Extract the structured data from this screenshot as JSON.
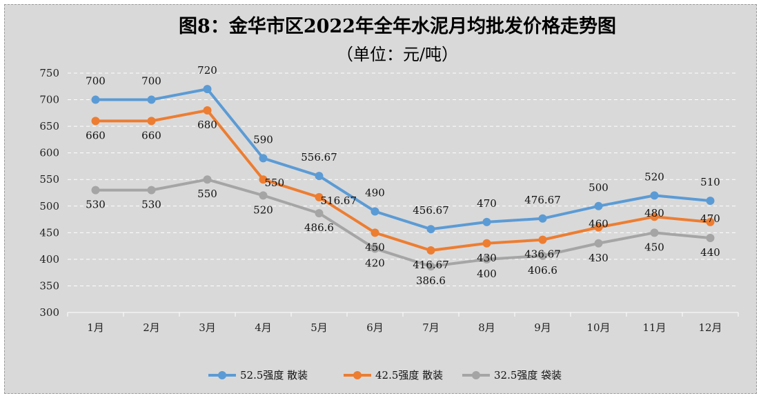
{
  "chart_data": {
    "type": "line",
    "title": "图8：金华市区2022年全年水泥月均批发价格走势图",
    "subtitle": "（单位：元/吨）",
    "categories": [
      "1月",
      "2月",
      "3月",
      "4月",
      "5月",
      "6月",
      "7月",
      "8月",
      "9月",
      "10月",
      "11月",
      "12月"
    ],
    "ylim": [
      300,
      750
    ],
    "yticks": [
      300,
      350,
      400,
      450,
      500,
      550,
      600,
      650,
      700,
      750
    ],
    "grid": true,
    "legend_position": "bottom",
    "series": [
      {
        "name": "52.5强度 散装",
        "color": "#5b9bd5",
        "values": [
          700,
          700,
          720,
          590,
          556.67,
          490,
          456.67,
          470,
          476.67,
          500,
          520,
          510
        ],
        "labels": [
          "700",
          "700",
          "720",
          "590",
          "556.67",
          "490",
          "456.67",
          "470",
          "476.67",
          "500",
          "520",
          "510"
        ]
      },
      {
        "name": "42.5强度 散装",
        "color": "#ed7d31",
        "values": [
          660,
          660,
          680,
          550,
          516.67,
          450,
          416.67,
          430,
          436.67,
          460,
          480,
          470
        ],
        "labels": [
          "660",
          "660",
          "680",
          "550",
          "516.67",
          "450",
          "416.67",
          "430",
          "436.67",
          "460",
          "480",
          "470"
        ]
      },
      {
        "name": "32.5强度 袋装",
        "color": "#a5a5a5",
        "values": [
          530,
          530,
          550,
          520,
          486.6,
          420,
          386.6,
          400,
          406.6,
          430,
          450,
          440
        ],
        "labels": [
          "530",
          "530",
          "550",
          "520",
          "486.6",
          "420",
          "386.6",
          "400",
          "406.6",
          "430",
          "450",
          "440"
        ]
      }
    ]
  }
}
